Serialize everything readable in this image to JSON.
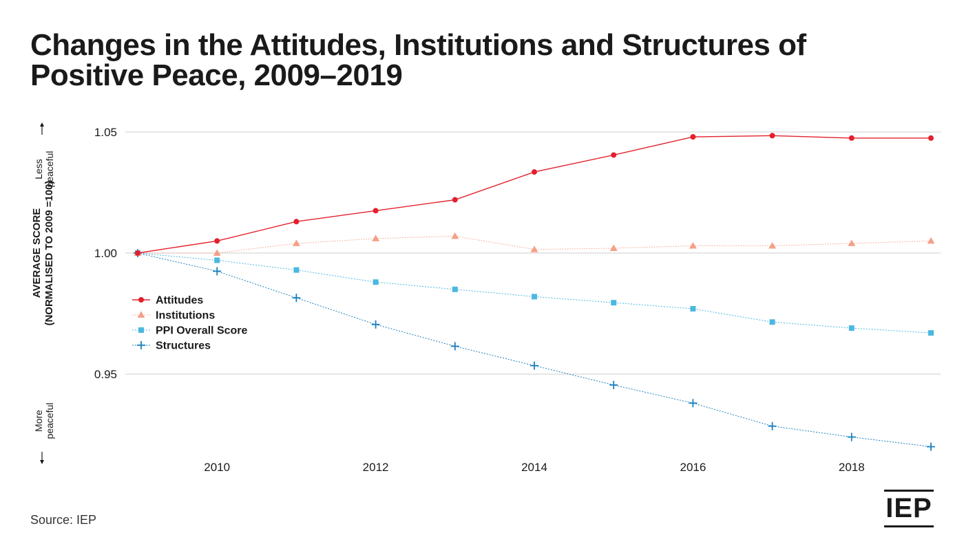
{
  "title_line1": "Changes in the Attitudes, Institutions and Structures of",
  "title_line2": "Positive Peace, 2009–2019",
  "source": "Source: IEP",
  "logo": "IEP",
  "colors": {
    "attitudes": "#e3202b",
    "institutions": "#f4a088",
    "ppi": "#4cb8e0",
    "structures": "#1a7fbf",
    "grid": "#cccccc",
    "text": "#1a1a1a"
  },
  "chart_data": {
    "type": "line",
    "title": "Changes in the Attitudes, Institutions and Structures of Positive Peace, 2009–2019",
    "ylabel_line1": "AVERAGE SCORE",
    "ylabel_line2": "(NORMALISED TO 2009 =100)",
    "y_top_note": "Less peaceful",
    "y_bottom_note": "More peaceful",
    "x": [
      2009,
      2010,
      2011,
      2012,
      2013,
      2014,
      2015,
      2016,
      2017,
      2018,
      2019
    ],
    "x_ticks": [
      "2010",
      "2012",
      "2014",
      "2016",
      "2018"
    ],
    "xlim": [
      2008.6,
      2019.5
    ],
    "y_ticks": [
      "0.95",
      "1.00",
      "1.05"
    ],
    "ylim": [
      0.915,
      1.055
    ],
    "grid": "horizontal",
    "legend_position": "left",
    "series": [
      {
        "name": "Attitudes",
        "marker": "circle",
        "line": "solid",
        "values": [
          1.0,
          1.005,
          1.013,
          1.0175,
          1.022,
          1.0335,
          1.0405,
          1.048,
          1.0485,
          1.0475,
          1.0475
        ]
      },
      {
        "name": "Institutions",
        "marker": "triangle",
        "line": "dotted",
        "values": [
          1.0,
          1.0,
          1.004,
          1.006,
          1.007,
          1.0015,
          1.002,
          1.003,
          1.003,
          1.004,
          1.005
        ]
      },
      {
        "name": "PPI Overall Score",
        "marker": "square",
        "line": "dotted",
        "values": [
          1.0,
          0.997,
          0.993,
          0.988,
          0.985,
          0.982,
          0.9795,
          0.977,
          0.9715,
          0.969,
          0.967
        ]
      },
      {
        "name": "Structures",
        "marker": "plus",
        "line": "dotted",
        "values": [
          1.0,
          0.9925,
          0.9815,
          0.9705,
          0.9615,
          0.9535,
          0.9455,
          0.938,
          0.9285,
          0.924,
          0.92
        ]
      }
    ]
  }
}
